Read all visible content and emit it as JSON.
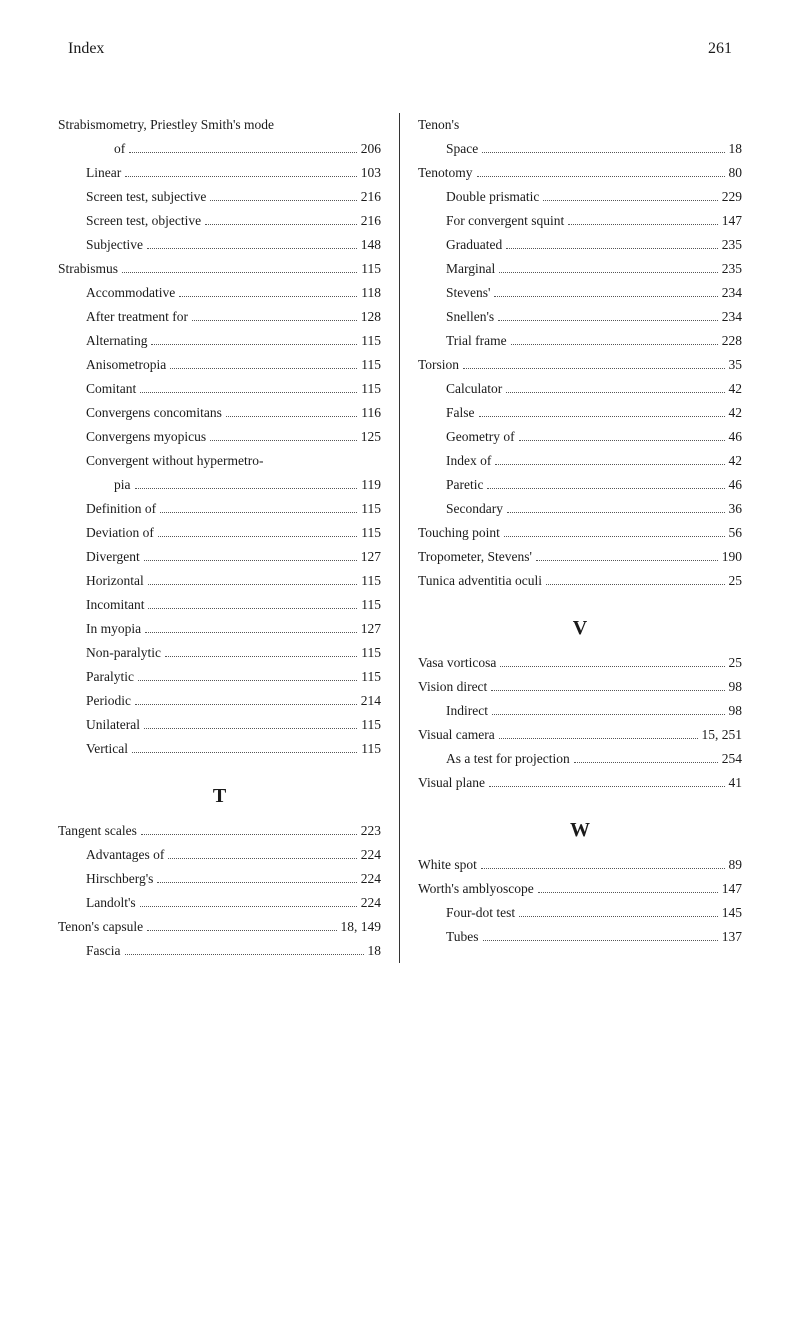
{
  "header": {
    "title": "Index",
    "page": "261"
  },
  "left": [
    {
      "text": "Strabismometry, Priestley Smith's mode",
      "indent": 0,
      "noPage": true
    },
    {
      "text": "of",
      "page": "206",
      "indent": 2
    },
    {
      "text": "Linear",
      "page": "103",
      "indent": 1
    },
    {
      "text": "Screen test, subjective",
      "page": "216",
      "indent": 1
    },
    {
      "text": "Screen test, objective",
      "page": "216",
      "indent": 1
    },
    {
      "text": "Subjective",
      "page": "148",
      "indent": 1
    },
    {
      "text": "Strabismus",
      "page": "115",
      "indent": 0
    },
    {
      "text": "Accommodative",
      "page": "118",
      "indent": 1
    },
    {
      "text": "After treatment for",
      "page": "128",
      "indent": 1
    },
    {
      "text": "Alternating",
      "page": "115",
      "indent": 1
    },
    {
      "text": "Anisometropia",
      "page": "115",
      "indent": 1
    },
    {
      "text": "Comitant",
      "page": "115",
      "indent": 1
    },
    {
      "text": "Convergens concomitans",
      "page": "116",
      "indent": 1
    },
    {
      "text": "Convergens myopicus",
      "page": "125",
      "indent": 1
    },
    {
      "text": "Convergent without hypermetro-",
      "indent": 1,
      "noPage": true
    },
    {
      "text": "pia",
      "page": "119",
      "indent": 2
    },
    {
      "text": "Definition of",
      "page": "115",
      "indent": 1
    },
    {
      "text": "Deviation of",
      "page": "115",
      "indent": 1
    },
    {
      "text": "Divergent",
      "page": "127",
      "indent": 1
    },
    {
      "text": "Horizontal",
      "page": "115",
      "indent": 1
    },
    {
      "text": "Incomitant",
      "page": "115",
      "indent": 1
    },
    {
      "text": "In myopia",
      "page": "127",
      "indent": 1
    },
    {
      "text": "Non-paralytic",
      "page": "115",
      "indent": 1
    },
    {
      "text": "Paralytic",
      "page": "115",
      "indent": 1
    },
    {
      "text": "Periodic",
      "page": "214",
      "indent": 1
    },
    {
      "text": "Unilateral",
      "page": "115",
      "indent": 1
    },
    {
      "text": "Vertical",
      "page": "115",
      "indent": 1
    },
    {
      "letter": "T"
    },
    {
      "text": "Tangent scales",
      "page": "223",
      "indent": 0
    },
    {
      "text": "Advantages of",
      "page": "224",
      "indent": 1
    },
    {
      "text": "Hirschberg's",
      "page": "224",
      "indent": 1
    },
    {
      "text": "Landolt's",
      "page": "224",
      "indent": 1
    },
    {
      "text": "Tenon's capsule",
      "page": "18, 149",
      "indent": 0
    },
    {
      "text": "Fascia",
      "page": "18",
      "indent": 1
    }
  ],
  "right": [
    {
      "text": "Tenon's",
      "indent": 0,
      "noPage": true
    },
    {
      "text": "Space",
      "page": "18",
      "indent": 1
    },
    {
      "text": "Tenotomy",
      "page": "80",
      "indent": 0
    },
    {
      "text": "Double prismatic",
      "page": "229",
      "indent": 1
    },
    {
      "text": "For convergent squint",
      "page": "147",
      "indent": 1
    },
    {
      "text": "Graduated",
      "page": "235",
      "indent": 1
    },
    {
      "text": "Marginal",
      "page": "235",
      "indent": 1
    },
    {
      "text": "Stevens'",
      "page": "234",
      "indent": 1
    },
    {
      "text": "Snellen's",
      "page": "234",
      "indent": 1
    },
    {
      "text": "Trial frame",
      "page": "228",
      "indent": 1
    },
    {
      "text": "Torsion",
      "page": "35",
      "indent": 0
    },
    {
      "text": "Calculator",
      "page": "42",
      "indent": 1
    },
    {
      "text": "False",
      "page": "42",
      "indent": 1
    },
    {
      "text": "Geometry of",
      "page": "46",
      "indent": 1
    },
    {
      "text": "Index of",
      "page": "42",
      "indent": 1
    },
    {
      "text": "Paretic",
      "page": "46",
      "indent": 1
    },
    {
      "text": "Secondary",
      "page": "36",
      "indent": 1
    },
    {
      "text": "Touching point",
      "page": "56",
      "indent": 0
    },
    {
      "text": "Tropometer, Stevens'",
      "page": "190",
      "indent": 0
    },
    {
      "text": "Tunica adventitia oculi",
      "page": "25",
      "indent": 0
    },
    {
      "letter": "V"
    },
    {
      "text": "Vasa vorticosa",
      "page": "25",
      "indent": 0
    },
    {
      "text": "Vision direct",
      "page": "98",
      "indent": 0
    },
    {
      "text": "Indirect",
      "page": "98",
      "indent": 1
    },
    {
      "text": "Visual camera",
      "page": "15, 251",
      "indent": 0
    },
    {
      "text": "As a test for projection",
      "page": "254",
      "indent": 1
    },
    {
      "text": "Visual plane",
      "page": "41",
      "indent": 0
    },
    {
      "letter": "W"
    },
    {
      "text": "White spot",
      "page": "89",
      "indent": 0
    },
    {
      "text": "Worth's amblyoscope",
      "page": "147",
      "indent": 0
    },
    {
      "text": "Four-dot test",
      "page": "145",
      "indent": 1
    },
    {
      "text": "Tubes",
      "page": "137",
      "indent": 1
    }
  ]
}
